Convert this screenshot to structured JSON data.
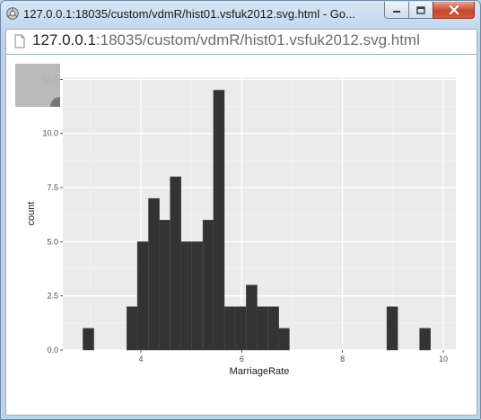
{
  "window": {
    "title": "127.0.0.1:18035/custom/vdmR/hist01.vsfuk2012.svg.html - Go..."
  },
  "address_bar": {
    "url_host": "127.0.0.1",
    "url_rest": ":18035/custom/vdmR/hist01.vsfuk2012.svg.html"
  },
  "icons": {
    "app": "chrome-app-icon",
    "page": "page-document-icon",
    "minimize": "minimize-icon",
    "maximize": "maximize-icon",
    "close": "close-icon",
    "zoom_control": "zoom-handle-icon"
  },
  "colors": {
    "panel_bg": "#ebebeb",
    "grid_major": "#ffffff",
    "bar_fill": "#333333",
    "corner_widget": "#b4b4b4"
  },
  "chart_data": {
    "type": "bar",
    "xlabel": "MarriageRate",
    "ylabel": "count",
    "xlim": [
      2.45,
      10.25
    ],
    "ylim": [
      0,
      12.6
    ],
    "bin_width": 0.2154,
    "x_ticks": [
      {
        "value": 4,
        "label": "4"
      },
      {
        "value": 6,
        "label": "6"
      },
      {
        "value": 8,
        "label": "8"
      },
      {
        "value": 10,
        "label": "10"
      }
    ],
    "y_ticks": [
      {
        "value": 0,
        "label": "0.0"
      },
      {
        "value": 2.5,
        "label": "2.5"
      },
      {
        "value": 5,
        "label": "5.0"
      },
      {
        "value": 7.5,
        "label": "7.5"
      },
      {
        "value": 10,
        "label": "10.0"
      },
      {
        "value": 12.5,
        "label": "12.5"
      }
    ],
    "bins": [
      {
        "start": 2.85,
        "count": 1
      },
      {
        "start": 3.72,
        "count": 2
      },
      {
        "start": 3.93,
        "count": 5
      },
      {
        "start": 4.15,
        "count": 7
      },
      {
        "start": 4.36,
        "count": 6
      },
      {
        "start": 4.58,
        "count": 8
      },
      {
        "start": 4.79,
        "count": 5
      },
      {
        "start": 5.01,
        "count": 5
      },
      {
        "start": 5.23,
        "count": 6
      },
      {
        "start": 5.44,
        "count": 12
      },
      {
        "start": 5.66,
        "count": 2
      },
      {
        "start": 5.87,
        "count": 2
      },
      {
        "start": 6.09,
        "count": 3
      },
      {
        "start": 6.3,
        "count": 2
      },
      {
        "start": 6.52,
        "count": 2
      },
      {
        "start": 6.73,
        "count": 1
      },
      {
        "start": 8.88,
        "count": 2
      },
      {
        "start": 9.53,
        "count": 1
      }
    ],
    "grid": true
  }
}
